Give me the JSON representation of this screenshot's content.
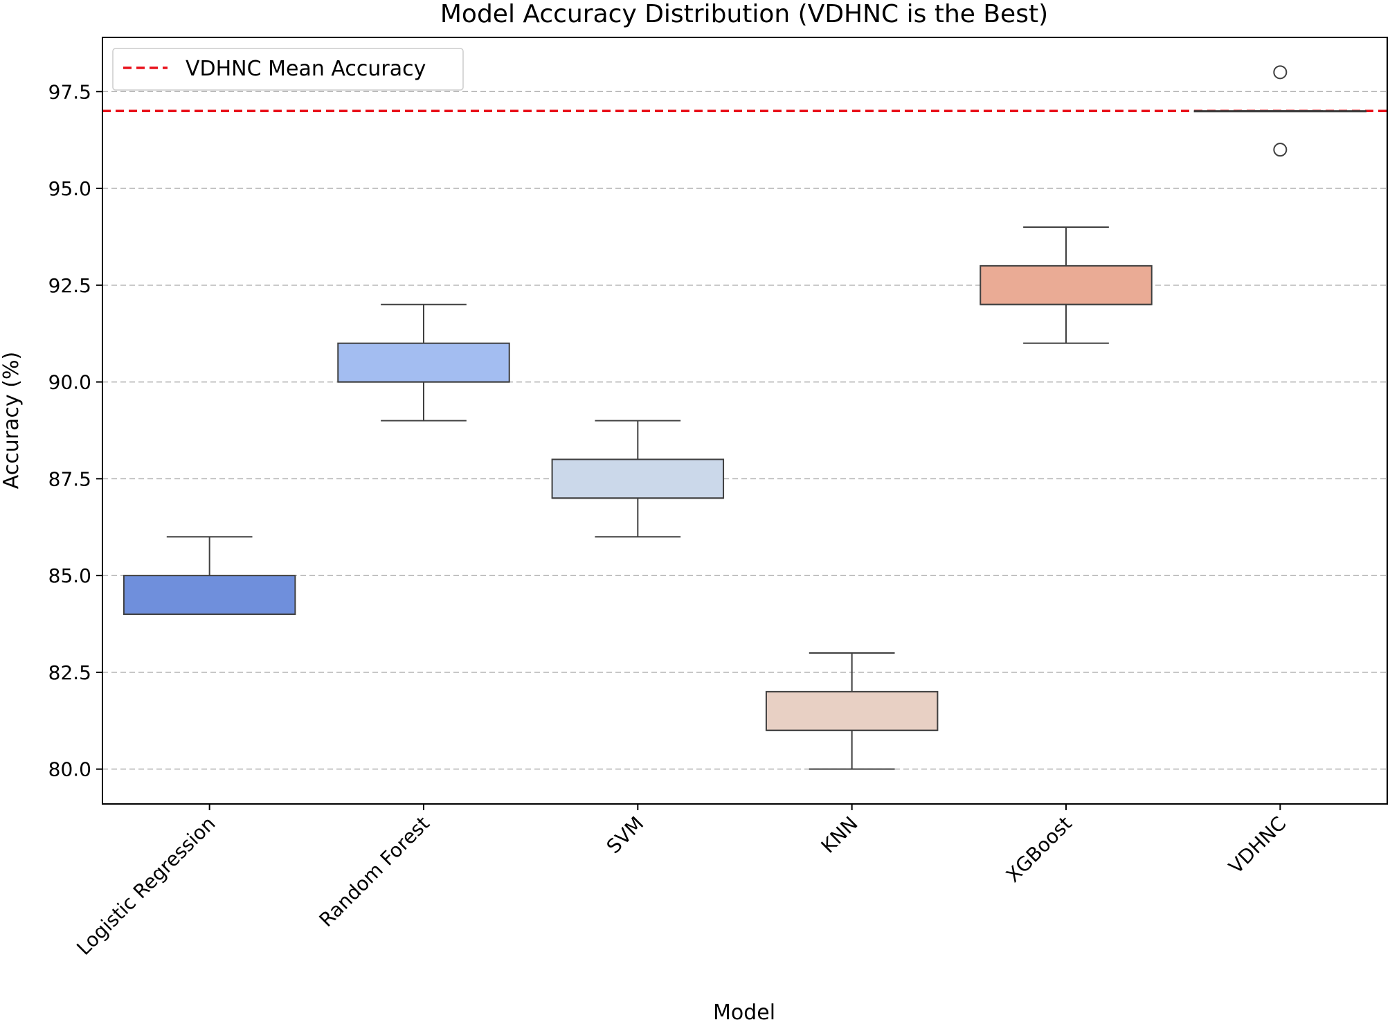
{
  "chart_data": {
    "type": "box",
    "title": "Model Accuracy Distribution (VDHNC is the Best)",
    "xlabel": "Model",
    "ylabel": "Accuracy (%)",
    "ylim": [
      79.1,
      98.9
    ],
    "yticks": [
      "80.0",
      "82.5",
      "85.0",
      "87.5",
      "90.0",
      "92.5",
      "95.0",
      "97.5"
    ],
    "grid": "y-dashed",
    "categories": [
      "Logistic Regression",
      "Random Forest",
      "SVM",
      "KNN",
      "XGBoost",
      "VDHNC"
    ],
    "boxes": [
      {
        "whisker_low": 84,
        "q1": 84,
        "median": 84,
        "q3": 85,
        "whisker_high": 86,
        "outliers": [],
        "color": "#6f8fdc"
      },
      {
        "whisker_low": 89,
        "q1": 90,
        "median": 90,
        "q3": 91,
        "whisker_high": 92,
        "outliers": [],
        "color": "#a3bdf1"
      },
      {
        "whisker_low": 86,
        "q1": 87,
        "median": 87,
        "q3": 88,
        "whisker_high": 89,
        "outliers": [],
        "color": "#cbd8ea"
      },
      {
        "whisker_low": 80,
        "q1": 81,
        "median": 81,
        "q3": 82,
        "whisker_high": 83,
        "outliers": [],
        "color": "#e8d0c4"
      },
      {
        "whisker_low": 91,
        "q1": 92,
        "median": 92,
        "q3": 93,
        "whisker_high": 94,
        "outliers": [],
        "color": "#eaab95"
      },
      {
        "whisker_low": 97,
        "q1": 97,
        "median": 97,
        "q3": 97,
        "whisker_high": 97,
        "outliers": [
          98,
          96
        ],
        "color": "#c0c0c0"
      }
    ],
    "reference_line": {
      "label": "VDHNC Mean Accuracy",
      "value": 97,
      "color": "#e8101a",
      "style": "dashed"
    },
    "legend": {
      "position": "top-left"
    }
  }
}
